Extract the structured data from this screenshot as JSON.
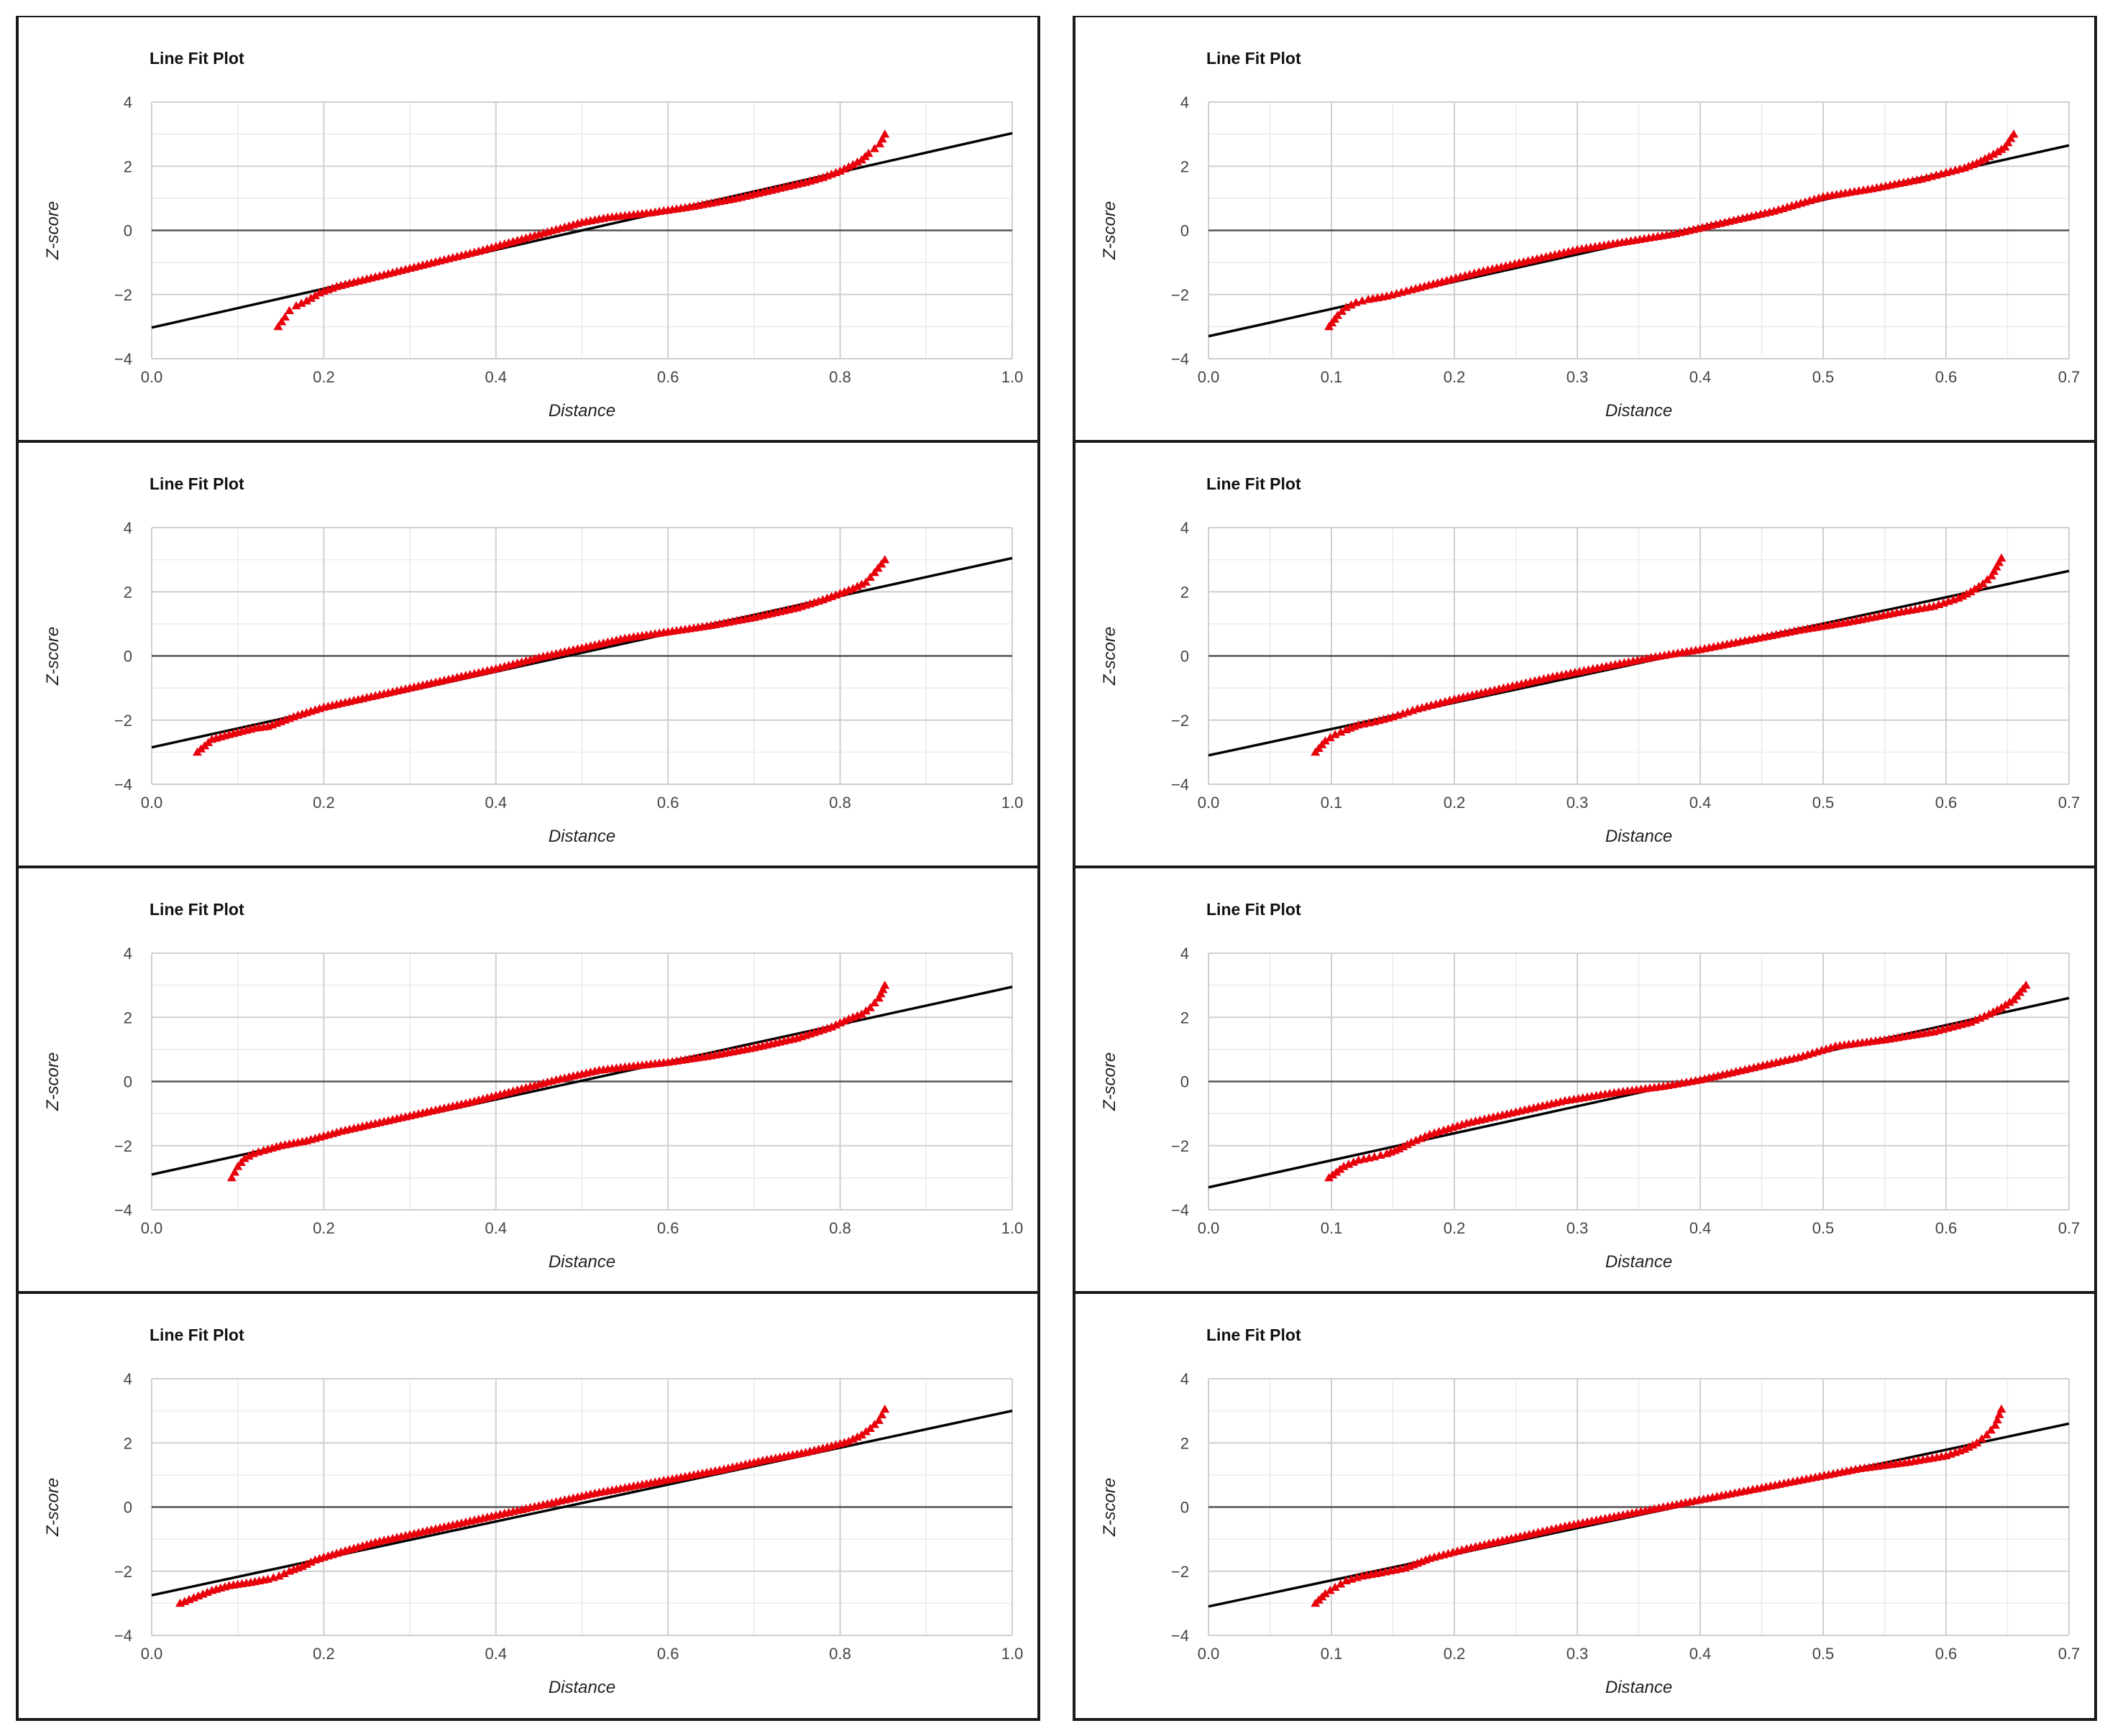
{
  "chart_data": [
    {
      "type": "scatter",
      "title": "Line Fit Plot",
      "xlabel": "Distance",
      "ylabel": "Z-score",
      "xlim": [
        0,
        1.0
      ],
      "ylim": [
        -4,
        4
      ],
      "xticks": [
        "0.0",
        "0.2",
        "0.4",
        "0.6",
        "0.8",
        "1.0"
      ],
      "yticks": [
        "4",
        "2",
        "0",
        "−2",
        "−4"
      ],
      "grid": true,
      "marker": "triangle",
      "colors": {
        "points": "#e8000b",
        "fit": "#000000",
        "zero_line": "#555555"
      },
      "fit_line": {
        "x": [
          0,
          1.0
        ],
        "y": [
          -3.03,
          3.03
        ]
      },
      "points": {
        "x": [
          0.147,
          0.155,
          0.16,
          0.168,
          0.18,
          0.195,
          0.215,
          0.26,
          0.32,
          0.38,
          0.44,
          0.5,
          0.53,
          0.58,
          0.63,
          0.68,
          0.72,
          0.76,
          0.78,
          0.8,
          0.815,
          0.825,
          0.833,
          0.84,
          0.846,
          0.852
        ],
        "y": [
          -3.0,
          -2.7,
          -2.5,
          -2.35,
          -2.2,
          -1.95,
          -1.75,
          -1.45,
          -1.05,
          -0.65,
          -0.2,
          0.25,
          0.4,
          0.55,
          0.75,
          1.0,
          1.25,
          1.5,
          1.65,
          1.85,
          2.05,
          2.2,
          2.4,
          2.55,
          2.7,
          3.0
        ]
      }
    },
    {
      "type": "scatter",
      "title": "Line Fit Plot",
      "xlabel": "Distance",
      "ylabel": "Z-score",
      "xlim": [
        0,
        0.7
      ],
      "ylim": [
        -4,
        4
      ],
      "xticks": [
        "0.0",
        "0.1",
        "0.2",
        "0.3",
        "0.4",
        "0.5",
        "0.6",
        "0.7"
      ],
      "yticks": [
        "4",
        "2",
        "0",
        "−2",
        "−4"
      ],
      "grid": true,
      "marker": "triangle",
      "colors": {
        "points": "#e8000b",
        "fit": "#000000",
        "zero_line": "#555555"
      },
      "fit_line": {
        "x": [
          0,
          0.7
        ],
        "y": [
          -3.3,
          2.65
        ]
      },
      "points": {
        "x": [
          0.098,
          0.105,
          0.112,
          0.12,
          0.13,
          0.145,
          0.165,
          0.19,
          0.22,
          0.26,
          0.3,
          0.34,
          0.38,
          0.42,
          0.46,
          0.5,
          0.54,
          0.58,
          0.6,
          0.615,
          0.625,
          0.635,
          0.642,
          0.648,
          0.655
        ],
        "y": [
          -3.0,
          -2.65,
          -2.4,
          -2.25,
          -2.15,
          -2.05,
          -1.85,
          -1.6,
          -1.3,
          -0.95,
          -0.6,
          -0.35,
          -0.1,
          0.25,
          0.6,
          1.05,
          1.3,
          1.6,
          1.8,
          1.95,
          2.1,
          2.3,
          2.45,
          2.6,
          3.0
        ]
      }
    },
    {
      "type": "scatter",
      "title": "Line Fit Plot",
      "xlabel": "Distance",
      "ylabel": "Z-score",
      "xlim": [
        0,
        1.0
      ],
      "ylim": [
        -4,
        4
      ],
      "xticks": [
        "0.0",
        "0.2",
        "0.4",
        "0.6",
        "0.8",
        "1.0"
      ],
      "yticks": [
        "4",
        "2",
        "0",
        "−2",
        "−4"
      ],
      "grid": true,
      "marker": "triangle",
      "colors": {
        "points": "#e8000b",
        "fit": "#000000",
        "zero_line": "#555555"
      },
      "fit_line": {
        "x": [
          0,
          1.0
        ],
        "y": [
          -2.85,
          3.05
        ]
      },
      "points": {
        "x": [
          0.053,
          0.07,
          0.09,
          0.105,
          0.12,
          0.135,
          0.15,
          0.17,
          0.2,
          0.25,
          0.3,
          0.35,
          0.4,
          0.45,
          0.5,
          0.55,
          0.6,
          0.65,
          0.7,
          0.75,
          0.78,
          0.8,
          0.815,
          0.83,
          0.84,
          0.852
        ],
        "y": [
          -3.0,
          -2.6,
          -2.45,
          -2.35,
          -2.25,
          -2.2,
          -2.05,
          -1.85,
          -1.6,
          -1.3,
          -1.0,
          -0.7,
          -0.4,
          -0.05,
          0.25,
          0.55,
          0.75,
          0.95,
          1.2,
          1.5,
          1.75,
          1.95,
          2.1,
          2.3,
          2.6,
          3.0
        ]
      }
    },
    {
      "type": "scatter",
      "title": "Line Fit Plot",
      "xlabel": "Distance",
      "ylabel": "Z-score",
      "xlim": [
        0,
        0.7
      ],
      "ylim": [
        -4,
        4
      ],
      "xticks": [
        "0.0",
        "0.1",
        "0.2",
        "0.3",
        "0.4",
        "0.5",
        "0.6",
        "0.7"
      ],
      "yticks": [
        "4",
        "2",
        "0",
        "−2",
        "−4"
      ],
      "grid": true,
      "marker": "triangle",
      "colors": {
        "points": "#e8000b",
        "fit": "#000000",
        "zero_line": "#555555"
      },
      "fit_line": {
        "x": [
          0,
          0.7
        ],
        "y": [
          -3.1,
          2.65
        ]
      },
      "points": {
        "x": [
          0.087,
          0.095,
          0.103,
          0.112,
          0.122,
          0.135,
          0.15,
          0.17,
          0.2,
          0.24,
          0.28,
          0.32,
          0.36,
          0.4,
          0.44,
          0.48,
          0.52,
          0.56,
          0.59,
          0.61,
          0.62,
          0.63,
          0.637,
          0.645
        ],
        "y": [
          -3.0,
          -2.65,
          -2.45,
          -2.3,
          -2.15,
          -2.05,
          -1.9,
          -1.65,
          -1.35,
          -1.0,
          -0.65,
          -0.35,
          -0.05,
          0.2,
          0.5,
          0.8,
          1.05,
          1.35,
          1.55,
          1.8,
          2.0,
          2.25,
          2.5,
          3.05
        ]
      }
    },
    {
      "type": "scatter",
      "title": "Line Fit Plot",
      "xlabel": "Distance",
      "ylabel": "Z-score",
      "xlim": [
        0,
        1.0
      ],
      "ylim": [
        -4,
        4
      ],
      "xticks": [
        "0.0",
        "0.2",
        "0.4",
        "0.6",
        "0.8",
        "1.0"
      ],
      "yticks": [
        "4",
        "2",
        "0",
        "−2",
        "−4"
      ],
      "grid": true,
      "marker": "triangle",
      "colors": {
        "points": "#e8000b",
        "fit": "#000000",
        "zero_line": "#555555"
      },
      "fit_line": {
        "x": [
          0,
          1.0
        ],
        "y": [
          -2.9,
          2.95
        ]
      },
      "points": {
        "x": [
          0.093,
          0.1,
          0.108,
          0.118,
          0.13,
          0.15,
          0.18,
          0.22,
          0.27,
          0.32,
          0.37,
          0.42,
          0.47,
          0.52,
          0.55,
          0.6,
          0.65,
          0.7,
          0.75,
          0.79,
          0.81,
          0.825,
          0.835,
          0.845,
          0.852
        ],
        "y": [
          -3.0,
          -2.65,
          -2.4,
          -2.25,
          -2.15,
          -2.0,
          -1.85,
          -1.55,
          -1.25,
          -0.95,
          -0.65,
          -0.3,
          0.05,
          0.35,
          0.45,
          0.6,
          0.8,
          1.05,
          1.35,
          1.7,
          1.95,
          2.1,
          2.3,
          2.6,
          3.0
        ]
      }
    },
    {
      "type": "scatter",
      "title": "Line Fit Plot",
      "xlabel": "Distance",
      "ylabel": "Z-score",
      "xlim": [
        0,
        0.7
      ],
      "ylim": [
        -4,
        4
      ],
      "xticks": [
        "0.0",
        "0.1",
        "0.2",
        "0.3",
        "0.4",
        "0.5",
        "0.6",
        "0.7"
      ],
      "yticks": [
        "4",
        "2",
        "0",
        "−2",
        "−4"
      ],
      "grid": true,
      "marker": "triangle",
      "colors": {
        "points": "#e8000b",
        "fit": "#000000",
        "zero_line": "#555555"
      },
      "fit_line": {
        "x": [
          0,
          0.7
        ],
        "y": [
          -3.3,
          2.6
        ]
      },
      "points": {
        "x": [
          0.098,
          0.11,
          0.122,
          0.135,
          0.145,
          0.155,
          0.165,
          0.18,
          0.21,
          0.25,
          0.29,
          0.33,
          0.37,
          0.4,
          0.44,
          0.48,
          0.51,
          0.55,
          0.59,
          0.62,
          0.635,
          0.645,
          0.655,
          0.665
        ],
        "y": [
          -3.0,
          -2.65,
          -2.45,
          -2.35,
          -2.25,
          -2.1,
          -1.9,
          -1.65,
          -1.3,
          -0.95,
          -0.6,
          -0.35,
          -0.15,
          0.05,
          0.4,
          0.75,
          1.1,
          1.3,
          1.55,
          1.85,
          2.1,
          2.3,
          2.55,
          3.0
        ]
      }
    },
    {
      "type": "scatter",
      "title": "Line Fit Plot",
      "xlabel": "Distance",
      "ylabel": "Z-score",
      "xlim": [
        0,
        1.0
      ],
      "ylim": [
        -4,
        4
      ],
      "xticks": [
        "0.0",
        "0.2",
        "0.4",
        "0.6",
        "0.8",
        "1.0"
      ],
      "yticks": [
        "4",
        "2",
        "0",
        "−2",
        "−4"
      ],
      "grid": true,
      "marker": "triangle",
      "colors": {
        "points": "#e8000b",
        "fit": "#000000",
        "zero_line": "#555555"
      },
      "fit_line": {
        "x": [
          0,
          1.0
        ],
        "y": [
          -2.75,
          3.0
        ]
      },
      "points": {
        "x": [
          0.033,
          0.07,
          0.09,
          0.115,
          0.135,
          0.148,
          0.16,
          0.175,
          0.19,
          0.22,
          0.26,
          0.31,
          0.36,
          0.41,
          0.46,
          0.51,
          0.56,
          0.61,
          0.66,
          0.71,
          0.76,
          0.79,
          0.81,
          0.825,
          0.835,
          0.845,
          0.852
        ],
        "y": [
          -3.0,
          -2.6,
          -2.45,
          -2.35,
          -2.25,
          -2.15,
          -2.0,
          -1.85,
          -1.65,
          -1.4,
          -1.1,
          -0.8,
          -0.5,
          -0.2,
          0.1,
          0.4,
          0.65,
          0.9,
          1.15,
          1.45,
          1.7,
          1.9,
          2.05,
          2.25,
          2.45,
          2.7,
          3.05
        ]
      }
    },
    {
      "type": "scatter",
      "title": "Line Fit Plot",
      "xlabel": "Distance",
      "ylabel": "Z-score",
      "xlim": [
        0,
        0.7
      ],
      "ylim": [
        -4,
        4
      ],
      "xticks": [
        "0.0",
        "0.1",
        "0.2",
        "0.3",
        "0.4",
        "0.5",
        "0.6",
        "0.7"
      ],
      "yticks": [
        "4",
        "2",
        "0",
        "−2",
        "−4"
      ],
      "grid": true,
      "marker": "triangle",
      "colors": {
        "points": "#e8000b",
        "fit": "#000000",
        "zero_line": "#555555"
      },
      "fit_line": {
        "x": [
          0,
          0.7
        ],
        "y": [
          -3.1,
          2.6
        ]
      },
      "points": {
        "x": [
          0.087,
          0.095,
          0.103,
          0.112,
          0.125,
          0.14,
          0.16,
          0.18,
          0.21,
          0.25,
          0.29,
          0.33,
          0.37,
          0.41,
          0.45,
          0.49,
          0.53,
          0.57,
          0.6,
          0.615,
          0.625,
          0.633,
          0.64,
          0.645
        ],
        "y": [
          -3.0,
          -2.7,
          -2.5,
          -2.3,
          -2.15,
          -2.05,
          -1.9,
          -1.6,
          -1.3,
          -0.95,
          -0.6,
          -0.3,
          0.0,
          0.3,
          0.6,
          0.9,
          1.2,
          1.4,
          1.6,
          1.8,
          2.0,
          2.25,
          2.55,
          3.05
        ]
      }
    }
  ]
}
